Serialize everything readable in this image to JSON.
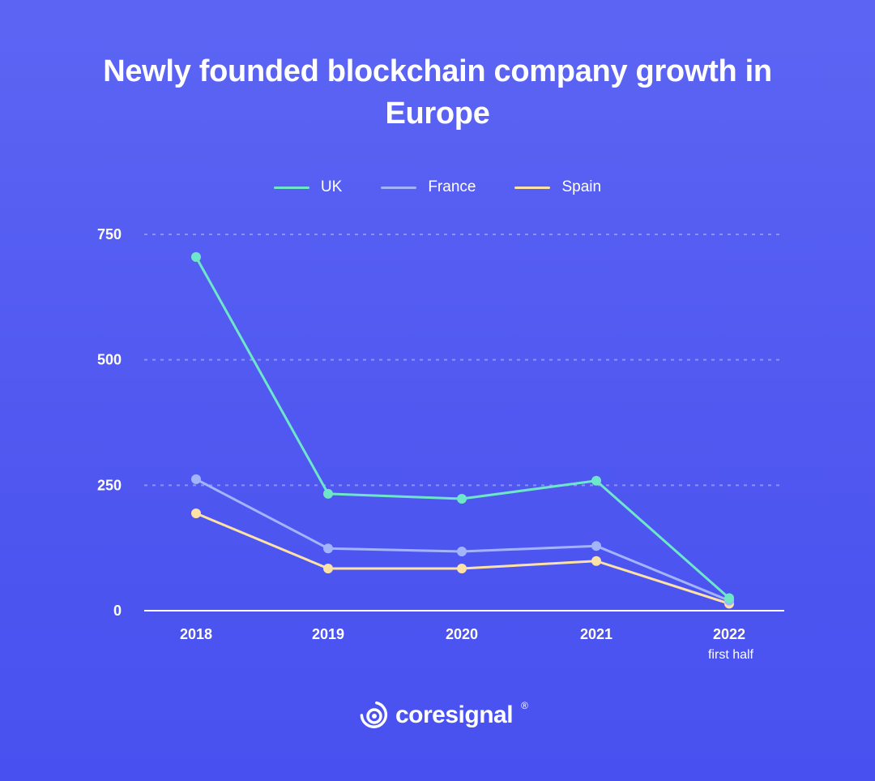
{
  "title": "Newly founded blockchain company growth in Europe",
  "legend": [
    {
      "label": "UK",
      "color": "#6ee7c8"
    },
    {
      "label": "France",
      "color": "#a3b4fb"
    },
    {
      "label": "Spain",
      "color": "#fde2a6"
    }
  ],
  "brand": {
    "name": "coresignal",
    "mark": "®"
  },
  "chart_data": {
    "type": "line",
    "title": "Newly founded blockchain company growth in Europe",
    "xlabel": "",
    "ylabel": "",
    "categories": [
      "2018",
      "2019",
      "2020",
      "2021",
      "2022"
    ],
    "category_sublabels": [
      "",
      "",
      "",
      "",
      "first half"
    ],
    "series": [
      {
        "name": "UK",
        "color": "#6ee7c8",
        "values": [
          705,
          233,
          223,
          259,
          25
        ]
      },
      {
        "name": "France",
        "color": "#a3b4fb",
        "values": [
          262,
          124,
          118,
          129,
          20
        ]
      },
      {
        "name": "Spain",
        "color": "#fde2a6",
        "values": [
          194,
          84,
          84,
          99,
          14
        ]
      }
    ],
    "yticks": [
      0,
      250,
      500,
      750
    ],
    "ylim": [
      0,
      750
    ],
    "grid": true,
    "legend_position": "top"
  }
}
